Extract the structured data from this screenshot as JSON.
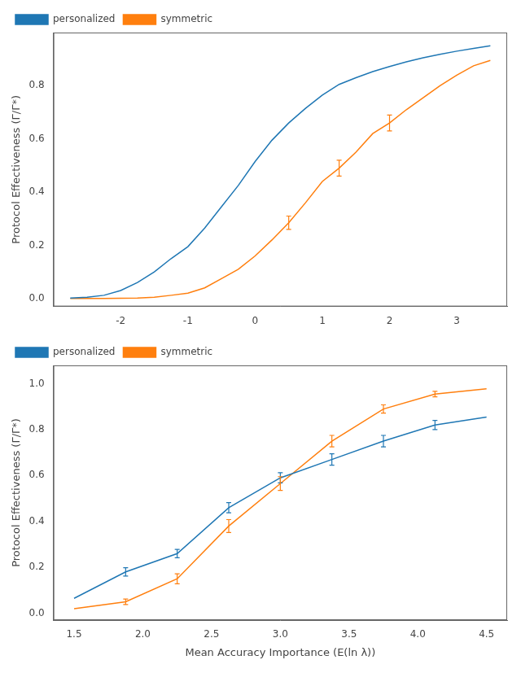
{
  "chart_data": [
    {
      "type": "line",
      "ylabel": "Protocol Effectiveness (Γ/Γ*)",
      "series": [
        {
          "name": "personalized",
          "color": "#1f77b4",
          "x": [
            -2.75,
            -2.5,
            -2.25,
            -2.0,
            -1.75,
            -1.5,
            -1.25,
            -1.0,
            -0.75,
            -0.5,
            -0.25,
            0.0,
            0.25,
            0.5,
            0.75,
            1.0,
            1.25,
            1.5,
            1.75,
            2.0,
            2.25,
            2.5,
            2.75,
            3.0,
            3.25,
            3.5
          ],
          "values": [
            0.002,
            0.005,
            0.012,
            0.03,
            0.06,
            0.1,
            0.15,
            0.195,
            0.265,
            0.345,
            0.425,
            0.515,
            0.595,
            0.66,
            0.715,
            0.765,
            0.805,
            0.83,
            0.853,
            0.872,
            0.89,
            0.905,
            0.918,
            0.93,
            0.94,
            0.95
          ]
        },
        {
          "name": "symmetric",
          "color": "#ff7f0e",
          "x": [
            -2.75,
            -2.5,
            -2.25,
            -2.0,
            -1.75,
            -1.5,
            -1.25,
            -1.0,
            -0.75,
            -0.5,
            -0.25,
            0.0,
            0.25,
            0.5,
            0.75,
            1.0,
            1.25,
            1.5,
            1.75,
            2.0,
            2.25,
            2.5,
            2.75,
            3.0,
            3.25,
            3.5
          ],
          "values": [
            0.0,
            0.0,
            0.0,
            0.001,
            0.002,
            0.005,
            0.012,
            0.02,
            0.04,
            0.075,
            0.11,
            0.16,
            0.22,
            0.285,
            0.36,
            0.44,
            0.49,
            0.55,
            0.62,
            0.66,
            0.71,
            0.755,
            0.8,
            0.84,
            0.875,
            0.895
          ],
          "errorbar_x": [
            0.5,
            1.25,
            2.0
          ],
          "errorbar_y": [
            0.285,
            0.49,
            0.66
          ],
          "yerr": [
            0.025,
            0.03,
            0.03
          ]
        }
      ],
      "xlim": [
        -3.0,
        3.75
      ],
      "ylim": [
        -0.03,
        1.0
      ],
      "xticks": [
        -2,
        -1,
        0,
        1,
        2,
        3
      ],
      "yticks": [
        {
          "value": 0.0,
          "label": "0.0"
        },
        0.2,
        0.4,
        0.6,
        0.8
      ],
      "grid": false,
      "legend": "upper left"
    },
    {
      "type": "line",
      "ylabel": "Protocol Effectiveness (Γ/Γ*)",
      "xlabel": "Mean Accuracy Importance (E(ln λ))",
      "series": [
        {
          "name": "personalized",
          "color": "#1f77b4",
          "x": [
            1.5,
            1.875,
            2.25,
            2.625,
            3.0,
            3.375,
            3.75,
            4.125,
            4.5
          ],
          "values": [
            0.065,
            0.18,
            0.26,
            0.46,
            0.59,
            0.67,
            0.75,
            0.82,
            0.855
          ],
          "errorbar_x": [
            1.875,
            2.25,
            2.625,
            3.0,
            3.375,
            3.75,
            4.125
          ],
          "errorbar_y": [
            0.18,
            0.26,
            0.46,
            0.59,
            0.67,
            0.75,
            0.82
          ],
          "yerr": [
            0.018,
            0.018,
            0.022,
            0.022,
            0.025,
            0.025,
            0.02
          ]
        },
        {
          "name": "symmetric",
          "color": "#ff7f0e",
          "x": [
            1.5,
            1.875,
            2.25,
            2.625,
            3.0,
            3.375,
            3.75,
            4.125,
            4.5
          ],
          "values": [
            0.02,
            0.05,
            0.15,
            0.38,
            0.565,
            0.75,
            0.89,
            0.955,
            0.978
          ],
          "errorbar_x": [
            1.875,
            2.25,
            2.625,
            3.0,
            3.375,
            3.75,
            4.125
          ],
          "errorbar_y": [
            0.05,
            0.15,
            0.38,
            0.565,
            0.75,
            0.89,
            0.955
          ],
          "yerr": [
            0.012,
            0.022,
            0.028,
            0.03,
            0.025,
            0.018,
            0.012
          ]
        }
      ],
      "xlim": [
        1.35,
        4.65
      ],
      "ylim": [
        -0.03,
        1.08
      ],
      "xticks": [
        1.5,
        {
          "value": 2.0,
          "label": "2.0"
        },
        2.5,
        {
          "value": 3.0,
          "label": "3.0"
        },
        3.5,
        {
          "value": 4.0,
          "label": "4.0"
        },
        4.5
      ],
      "yticks": [
        {
          "value": 0.0,
          "label": "0.0"
        },
        0.2,
        0.4,
        0.6,
        0.8,
        {
          "value": 1.0,
          "label": "1.0"
        }
      ],
      "grid": false,
      "legend": "upper left"
    }
  ]
}
